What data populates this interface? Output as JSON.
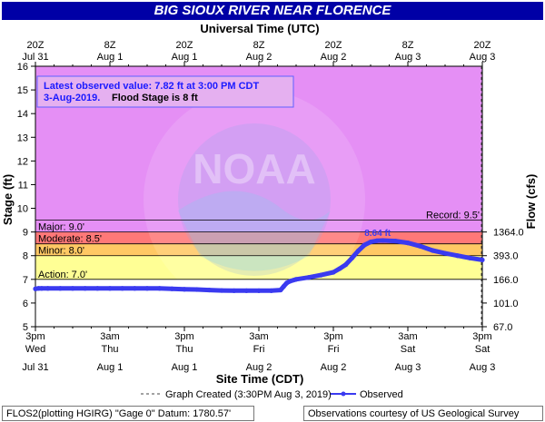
{
  "title": "BIG SIOUX RIVER NEAR FLORENCE",
  "top_axis_title": "Universal Time (UTC)",
  "bottom_axis_title": "Site Time (CDT)",
  "left_axis_title": "Stage (ft)",
  "right_axis_title": "Flow (cfs)",
  "top_ticks": [
    {
      "l1": "20Z",
      "l2": "Jul 31"
    },
    {
      "l1": "8Z",
      "l2": "Aug 1"
    },
    {
      "l1": "20Z",
      "l2": "Aug 1"
    },
    {
      "l1": "8Z",
      "l2": "Aug 2"
    },
    {
      "l1": "20Z",
      "l2": "Aug 2"
    },
    {
      "l1": "8Z",
      "l2": "Aug 3"
    },
    {
      "l1": "20Z",
      "l2": "Aug 3"
    }
  ],
  "bottom_ticks": [
    {
      "l1": "3pm",
      "l2": "Wed",
      "l3": "Jul 31"
    },
    {
      "l1": "3am",
      "l2": "Thu",
      "l3": "Aug 1"
    },
    {
      "l1": "3pm",
      "l2": "Thu",
      "l3": "Aug 1"
    },
    {
      "l1": "3am",
      "l2": "Fri",
      "l3": "Aug 2"
    },
    {
      "l1": "3pm",
      "l2": "Fri",
      "l3": "Aug 2"
    },
    {
      "l1": "3am",
      "l2": "Sat",
      "l3": "Aug 3"
    },
    {
      "l1": "3pm",
      "l2": "Sat",
      "l3": "Aug 3"
    }
  ],
  "stage_ticks": [
    "5",
    "6",
    "7",
    "8",
    "9",
    "10",
    "11",
    "12",
    "13",
    "14",
    "15",
    "16"
  ],
  "flow_ticks": [
    {
      "stage": 5,
      "label": "67.0"
    },
    {
      "stage": 6,
      "label": "101.0"
    },
    {
      "stage": 7,
      "label": "166.0"
    },
    {
      "stage": 8,
      "label": "393.0"
    },
    {
      "stage": 9,
      "label": "1364.0"
    }
  ],
  "flood_categories": [
    {
      "name": "Action",
      "label": "Action: 7.0'",
      "from": 7.0,
      "to": 8.0,
      "color": "#ffff95"
    },
    {
      "name": "Minor",
      "label": "Minor: 8.0'",
      "from": 8.0,
      "to": 8.5,
      "color": "#ffc864"
    },
    {
      "name": "Moderate",
      "label": "Moderate: 8.5'",
      "from": 8.5,
      "to": 9.0,
      "color": "#ff7878"
    },
    {
      "name": "Major",
      "label": "Major: 9.0'",
      "from": 9.0,
      "to": 16.0,
      "color": "#e58ff5"
    }
  ],
  "record": {
    "label": "Record: 9.5'",
    "stage": 9.5
  },
  "info_box": {
    "line1": "Latest observed value: 7.82 ft at 3:00 PM CDT",
    "line2a": "3-Aug-2019.",
    "line2b": "Flood Stage is 8 ft"
  },
  "peak_label": "8.64 ft",
  "watermark": "NOAA",
  "legend": {
    "graph_created": "Graph Created (3:30PM Aug 3, 2019)",
    "observed": "Observed"
  },
  "footer": {
    "left": "FLOS2(plotting HGIRG) \"Gage 0\" Datum: 1780.57'",
    "right": "Observations courtesy of US Geological Survey"
  },
  "colors": {
    "title_bg": "#0000a6",
    "observed": "#3a3af0",
    "info_text": "#1a1aff",
    "below_action": "#ffffff"
  },
  "chart_data": {
    "type": "line",
    "title": "BIG SIOUX RIVER NEAR FLORENCE",
    "xlabel": "Site Time (CDT)",
    "ylabel": "Stage (ft)",
    "y2label": "Flow (cfs)",
    "x_units": "hours since Jul 31 3pm CDT",
    "xlim": [
      0,
      72
    ],
    "ylim": [
      5,
      16
    ],
    "grid": false,
    "series": [
      {
        "name": "Observed",
        "x": [
          0,
          0.5,
          1,
          2,
          4,
          6,
          8,
          10,
          12,
          14,
          16,
          18,
          20,
          22,
          24,
          26,
          28,
          30,
          32,
          34,
          36,
          38,
          39.5,
          40,
          40.5,
          41,
          42,
          44,
          46,
          48,
          49,
          50,
          51,
          52,
          53,
          54,
          55,
          56,
          58,
          60,
          62,
          64,
          66,
          68,
          70,
          72
        ],
        "y": [
          6.6,
          6.62,
          6.62,
          6.62,
          6.62,
          6.62,
          6.62,
          6.62,
          6.62,
          6.62,
          6.62,
          6.62,
          6.62,
          6.6,
          6.58,
          6.57,
          6.55,
          6.53,
          6.52,
          6.52,
          6.52,
          6.52,
          6.55,
          6.7,
          6.85,
          6.92,
          7.0,
          7.08,
          7.18,
          7.3,
          7.45,
          7.62,
          7.9,
          8.2,
          8.45,
          8.58,
          8.63,
          8.64,
          8.62,
          8.54,
          8.4,
          8.22,
          8.1,
          8.0,
          7.9,
          7.82
        ]
      }
    ]
  }
}
